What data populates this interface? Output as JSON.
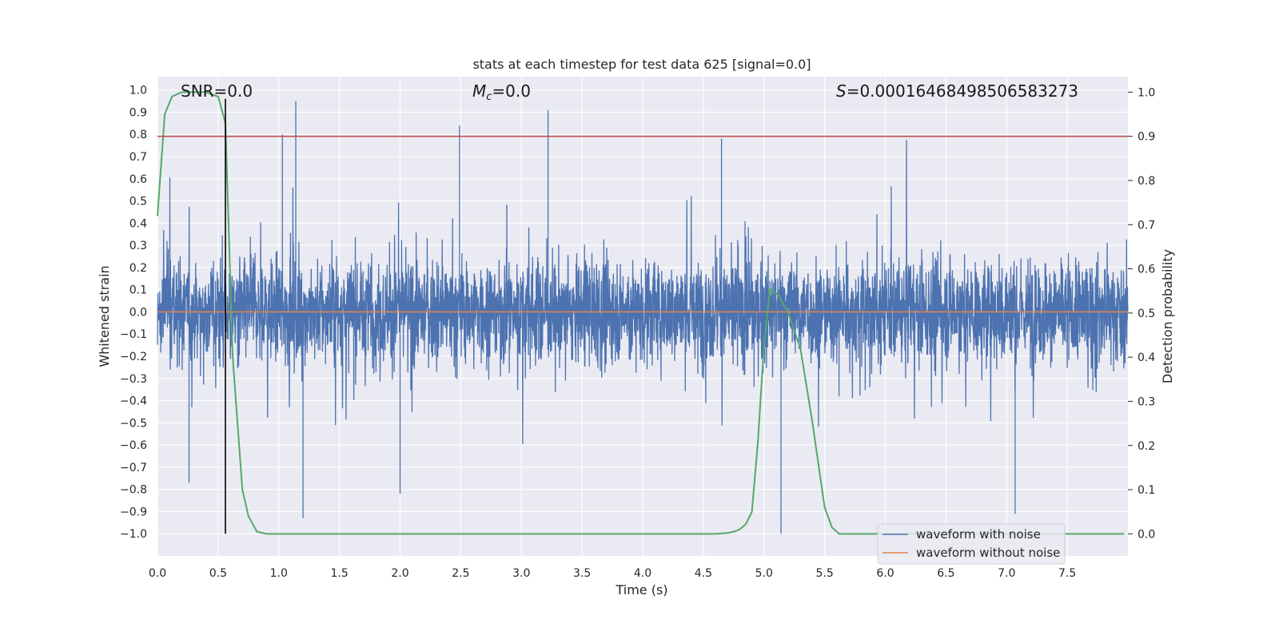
{
  "chart_data": {
    "type": "line",
    "title": "stats at each timestep for test data 625 [signal=0.0]",
    "xlabel": "Time (s)",
    "ylabel": "Whitened strain",
    "y2label": "Detection probability",
    "xlim": [
      0.0,
      8.0
    ],
    "ylim": [
      -1.1,
      1.06
    ],
    "y2lim": [
      -0.05,
      1.035
    ],
    "xticks": [
      "0.0",
      "0.5",
      "1.0",
      "1.5",
      "2.0",
      "2.5",
      "3.0",
      "3.5",
      "4.0",
      "4.5",
      "5.0",
      "5.5",
      "6.0",
      "6.5",
      "7.0",
      "7.5"
    ],
    "yticks": [
      "1.0",
      "0.9",
      "0.8",
      "0.7",
      "0.6",
      "0.5",
      "0.4",
      "0.3",
      "0.2",
      "0.1",
      "0.0",
      "−0.1",
      "−0.2",
      "−0.3",
      "−0.4",
      "−0.5",
      "−0.6",
      "−0.7",
      "−0.8",
      "−0.9",
      "−1.0"
    ],
    "y2ticks": [
      "1.0",
      "0.9",
      "0.8",
      "0.7",
      "0.6",
      "0.5",
      "0.4",
      "0.3",
      "0.2",
      "0.1",
      "0.0"
    ],
    "grid": true,
    "legend_position": "lower-right",
    "annotations": {
      "snr": "SNR=0.0",
      "mc_prefix": "M",
      "mc_sub": "c",
      "mc_suffix": "=0.0",
      "s_prefix": "S",
      "s_suffix": "=0.00016468498506583273"
    },
    "series": [
      {
        "name": "waveform with noise",
        "axis": "left",
        "color": "#4c72b0",
        "note_range": "noise spanning roughly -0.5 to 0.5 with spikes up to 0.95 and down to -1.0",
        "spikes": [
          {
            "x": 1.14,
            "y": 0.95
          },
          {
            "x": 2.49,
            "y": 0.84
          },
          {
            "x": 3.22,
            "y": 0.91
          },
          {
            "x": 1.03,
            "y": 0.8
          },
          {
            "x": 4.65,
            "y": 0.78
          },
          {
            "x": 1.2,
            "y": -0.93
          },
          {
            "x": 5.14,
            "y": -1.0
          },
          {
            "x": 7.07,
            "y": -0.91
          },
          {
            "x": 2.0,
            "y": -0.82
          },
          {
            "x": 0.26,
            "y": -0.77
          }
        ]
      },
      {
        "name": "waveform without noise",
        "axis": "left",
        "color": "#dd8452",
        "x": [
          0.0,
          8.0
        ],
        "y": [
          0.0,
          0.0
        ]
      },
      {
        "name": "detection probability",
        "axis": "right",
        "color": "#55a868",
        "x": [
          0.0,
          0.06,
          0.12,
          0.2,
          0.3,
          0.4,
          0.5,
          0.56,
          0.62,
          0.7,
          0.75,
          0.82,
          0.9,
          1.0,
          2.0,
          3.0,
          4.0,
          4.6,
          4.7,
          4.75,
          4.8,
          4.85,
          4.9,
          4.95,
          5.0,
          5.05,
          5.12,
          5.2,
          5.3,
          5.4,
          5.5,
          5.56,
          5.62,
          6.0,
          7.0,
          7.97
        ],
        "y": [
          0.72,
          0.95,
          0.99,
          1.0,
          1.0,
          1.0,
          0.99,
          0.93,
          0.4,
          0.1,
          0.04,
          0.005,
          0.0,
          0.0,
          0.0,
          0.0,
          0.0,
          0.0,
          0.002,
          0.005,
          0.01,
          0.022,
          0.05,
          0.21,
          0.43,
          0.555,
          0.54,
          0.5,
          0.42,
          0.25,
          0.06,
          0.015,
          0.0,
          0.0,
          0.0,
          0.0
        ]
      },
      {
        "name": "threshold",
        "axis": "right",
        "color": "#c44e52",
        "x": [
          0.0,
          8.0
        ],
        "y": [
          0.9,
          0.9
        ]
      },
      {
        "name": "marker",
        "axis": "left",
        "color": "#000000",
        "x": [
          0.56,
          0.56
        ],
        "y": [
          -1.0,
          0.96
        ]
      }
    ]
  }
}
